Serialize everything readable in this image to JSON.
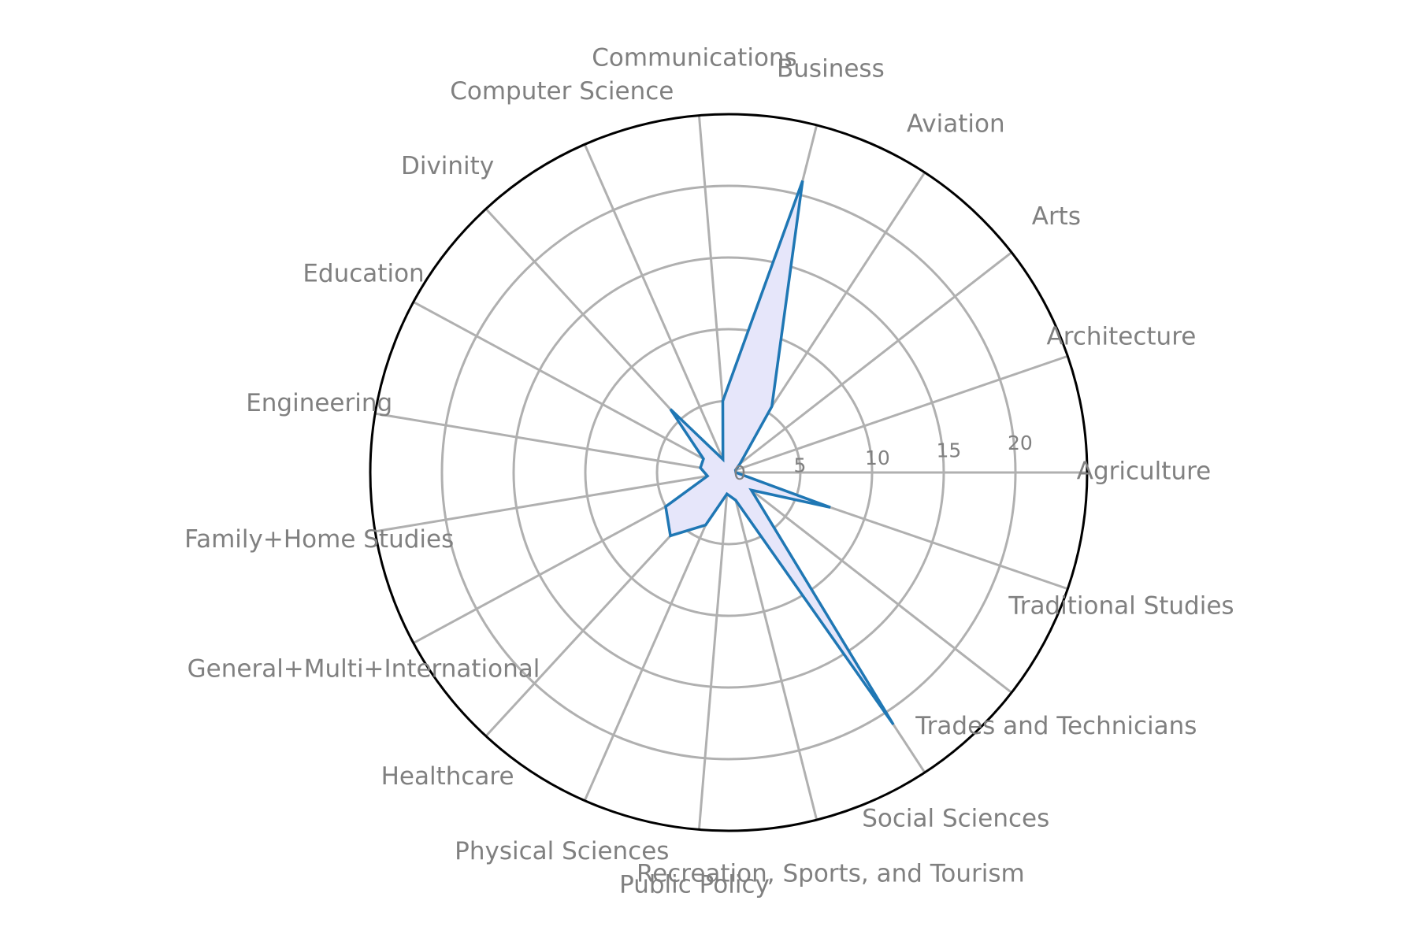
{
  "chart_data": {
    "type": "radar",
    "categories": [
      "Agriculture",
      "Architecture",
      "Arts",
      "Aviation",
      "Business",
      "Communications",
      "Computer Science",
      "Divinity",
      "Education",
      "Engineering",
      "Family+Home Studies",
      "General+Multi+International",
      "Healthcare",
      "Physical Sciences",
      "Public Policy",
      "Recreation, Sports, and Tourism",
      "Social Sciences",
      "Trades and Technicians",
      "Traditional Studies"
    ],
    "values": [
      0.5,
      0.5,
      1,
      5.5,
      21,
      5,
      1,
      6,
      2,
      2,
      1.5,
      5,
      6,
      4,
      1.5,
      2,
      21,
      2,
      7.5
    ],
    "rlim": [
      0,
      25
    ],
    "radial_ticks": [
      0,
      5,
      10,
      15,
      20
    ],
    "grid": true,
    "colors": {
      "line": "#1f77b4",
      "fill": "#e6e6fa",
      "grid": "#b0b0b0",
      "label": "#808080",
      "frame": "#000000"
    }
  }
}
